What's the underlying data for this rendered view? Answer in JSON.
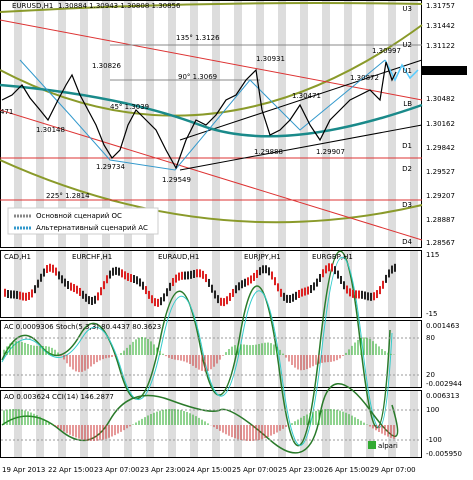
{
  "header": {
    "symbol": "EURUSD,H1",
    "quote": "1.30884 1.30943 1.30808 1.30856"
  },
  "price_axis": [
    "1.31757",
    "1.31442",
    "1.31122",
    "1.30856",
    "1.30482",
    "1.30162",
    "1.29842",
    "1.29527",
    "1.29207",
    "1.28887",
    "1.28567"
  ],
  "levels": [
    "U3",
    "U2",
    "U1",
    "LB",
    "D1",
    "D2",
    "D3",
    "D4"
  ],
  "annotations": [
    "1.30826",
    "1.30931",
    "1.30997",
    "1.30872",
    "1.30471",
    "1.30148",
    "1.29734",
    "1.29549",
    "1.29888",
    "1.29907",
    "135° 1.3126",
    "90° 1.3069",
    "45° 1.3039",
    "225° 1.2814",
    "471"
  ],
  "legend": [
    "Основной сценарий ОС",
    "Альтернативный сценарий АС"
  ],
  "panel2": {
    "labels": [
      "CAD,H1",
      "EURCHF,H1",
      "EURAUD,H1",
      "EURJPY,H1",
      "EURGBP,H1"
    ],
    "axis": [
      "115",
      "-15"
    ]
  },
  "panel3": {
    "title": "AC 0.0009306  Stoch(5,3,3) 80.4437 80.3623",
    "axis": [
      "0.001463",
      "80",
      "20",
      "-0.002944"
    ]
  },
  "panel4": {
    "title": "AO 0.003624  CCI(14) 146.2877",
    "axis": [
      "0.006313",
      "100",
      "-100",
      "-0.005950"
    ]
  },
  "time_axis": [
    "19 Apr 2013",
    "22 Apr 15:00",
    "23 Apr 07:00",
    "23 Apr 23:00",
    "24 Apr 15:00",
    "25 Apr 07:00",
    "25 Apr 23:00",
    "26 Apr 15:00",
    "29 Apr 07:00"
  ],
  "logo": "alpari"
}
